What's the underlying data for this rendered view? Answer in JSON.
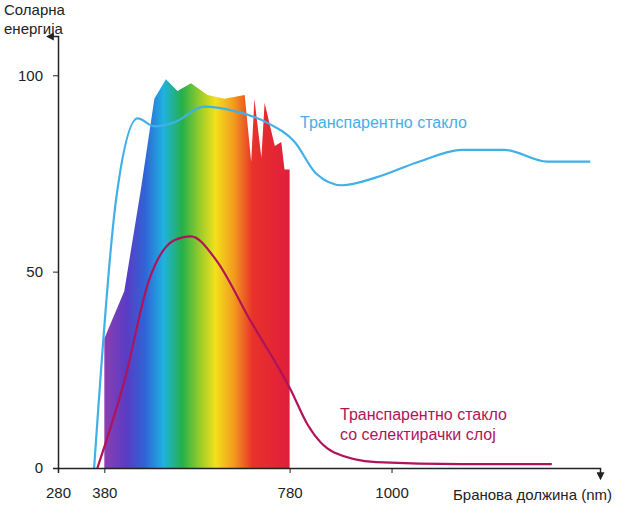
{
  "chart_data": {
    "type": "line",
    "ylabel": "Соларна\nенергија",
    "xlabel": "Бранова должина (nm)",
    "xlim": [
      280,
      1450
    ],
    "xticks": [
      280,
      380,
      780,
      1000
    ],
    "ylim": [
      0,
      110
    ],
    "yticks": [
      0,
      50,
      100
    ],
    "series": [
      {
        "type": "area",
        "color": "spectrum",
        "x": [
          380,
          423,
          459,
          488,
          513,
          538,
          567,
          603,
          639,
          683,
          697,
          704,
          719,
          726,
          748,
          762,
          769,
          780
        ],
        "values": [
          33,
          45,
          71,
          94,
          99,
          96,
          98,
          95,
          94,
          95,
          78,
          94,
          79,
          93,
          82,
          83,
          76,
          76
        ]
      },
      {
        "name": "Транспарентно стакло",
        "type": "line",
        "color": "#3fb0e8",
        "x": [
          358,
          405,
          452,
          488,
          531,
          596,
          657,
          730,
          791,
          837,
          893,
          967,
          1059,
          1152,
          1244,
          1336,
          1429
        ],
        "values": [
          0,
          68,
          89,
          87,
          88,
          92,
          91,
          88,
          83,
          75,
          72,
          74,
          78,
          81,
          81,
          78,
          78
        ]
      },
      {
        "name": "Транспарентно стакло\nсо селектирачки слој",
        "type": "line",
        "color": "#b0135a",
        "x": [
          365,
          423,
          477,
          531,
          567,
          621,
          693,
          782,
          819,
          875,
          967,
          1152,
          1346
        ],
        "values": [
          0,
          22,
          48,
          58,
          59,
          53,
          38,
          20,
          11,
          4,
          1.5,
          1,
          1
        ]
      }
    ]
  }
}
